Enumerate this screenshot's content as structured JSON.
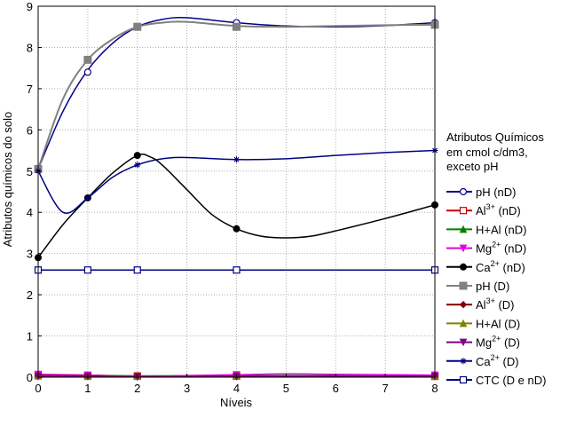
{
  "chart_data": {
    "type": "line",
    "xlabel": "Níveis",
    "ylabel": "Atributos químicos do solo",
    "xlim": [
      0,
      8
    ],
    "ylim": [
      0,
      9
    ],
    "x_ticks": [
      "0",
      "1",
      "2",
      "3",
      "4",
      "5",
      "6",
      "7",
      "8"
    ],
    "y_ticks": [
      "0",
      "1",
      "2",
      "3",
      "4",
      "5",
      "6",
      "7",
      "8",
      "9"
    ],
    "grid": true,
    "legend_position": "right",
    "legend_title": [
      "Atributos Químicos",
      "em cmol c/dm3,",
      "exceto pH"
    ],
    "series": [
      {
        "name": "pH (nD)",
        "legend": [
          "pH (nD)"
        ],
        "color": "#00008b",
        "marker": "circle-open",
        "x": [
          0,
          1,
          2,
          4,
          8
        ],
        "y": [
          5.05,
          7.4,
          8.5,
          8.6,
          8.6
        ],
        "curve": [
          [
            0,
            5.05
          ],
          [
            0.5,
            6.45
          ],
          [
            1,
            7.45
          ],
          [
            1.5,
            8.1
          ],
          [
            2,
            8.5
          ],
          [
            2.5,
            8.68
          ],
          [
            3,
            8.72
          ],
          [
            4,
            8.6
          ],
          [
            5,
            8.52
          ],
          [
            6,
            8.5
          ],
          [
            7,
            8.53
          ],
          [
            8,
            8.6
          ]
        ]
      },
      {
        "name": "Al 3+ (nD)",
        "legend": [
          "Al",
          "3+",
          " (nD)"
        ],
        "color": "#cc0000",
        "marker": "square-open",
        "x": [
          0,
          1,
          2,
          4,
          8
        ],
        "y": [
          0.05,
          0.04,
          0.03,
          0.03,
          0.02
        ],
        "curve": [
          [
            0,
            0.05
          ],
          [
            1,
            0.04
          ],
          [
            2,
            0.03
          ],
          [
            4,
            0.03
          ],
          [
            8,
            0.02
          ]
        ]
      },
      {
        "name": "H+Al (nD)",
        "legend": [
          "H+Al  (nD)"
        ],
        "color": "#008000",
        "marker": "triangle",
        "x": [
          0,
          1,
          2,
          4,
          8
        ],
        "y": [
          0.06,
          0.05,
          0.03,
          0.04,
          0.03
        ],
        "curve": [
          [
            0,
            0.06
          ],
          [
            1,
            0.05
          ],
          [
            2,
            0.03
          ],
          [
            4,
            0.04
          ],
          [
            8,
            0.03
          ]
        ]
      },
      {
        "name": "Mg 2+ (nD)",
        "legend": [
          "Mg",
          "2+",
          " (nD)"
        ],
        "color": "#e000e0",
        "marker": "triangle-down",
        "x": [
          0,
          1,
          2,
          4,
          8
        ],
        "y": [
          0.07,
          0.05,
          0.01,
          0.06,
          0.05
        ],
        "curve": [
          [
            0,
            0.07
          ],
          [
            1,
            0.05
          ],
          [
            2,
            0.01
          ],
          [
            3,
            0.04
          ],
          [
            4,
            0.06
          ],
          [
            5,
            0.08
          ],
          [
            6,
            0.07
          ],
          [
            8,
            0.05
          ]
        ]
      },
      {
        "name": "Ca2+ (nD)",
        "legend": [
          "Ca",
          "2+",
          " (nD)"
        ],
        "color": "#000000",
        "marker": "circle-filled",
        "x": [
          0,
          1,
          2,
          4,
          8
        ],
        "y": [
          2.9,
          4.35,
          5.38,
          3.6,
          4.18
        ],
        "curve": [
          [
            0,
            2.9
          ],
          [
            0.5,
            3.7
          ],
          [
            1,
            4.35
          ],
          [
            1.5,
            4.95
          ],
          [
            2,
            5.38
          ],
          [
            2.25,
            5.35
          ],
          [
            2.5,
            5.15
          ],
          [
            3,
            4.55
          ],
          [
            3.5,
            3.95
          ],
          [
            4,
            3.6
          ],
          [
            4.5,
            3.42
          ],
          [
            5,
            3.38
          ],
          [
            5.5,
            3.42
          ],
          [
            6,
            3.55
          ],
          [
            7,
            3.85
          ],
          [
            8,
            4.18
          ]
        ]
      },
      {
        "name": "pH (D)",
        "legend": [
          "pH (D)"
        ],
        "color": "#808080",
        "marker": "square-filled",
        "x": [
          0,
          1,
          2,
          4,
          8
        ],
        "y": [
          5.05,
          7.7,
          8.5,
          8.5,
          8.55
        ],
        "curve": [
          [
            0,
            5.05
          ],
          [
            0.5,
            6.75
          ],
          [
            1,
            7.7
          ],
          [
            1.5,
            8.2
          ],
          [
            2,
            8.5
          ],
          [
            2.5,
            8.6
          ],
          [
            3,
            8.62
          ],
          [
            4,
            8.52
          ],
          [
            5,
            8.5
          ],
          [
            6,
            8.52
          ],
          [
            7,
            8.54
          ],
          [
            8,
            8.55
          ]
        ]
      },
      {
        "name": "Al 3+ (D)",
        "legend": [
          "Al",
          "3+",
          " (D)"
        ],
        "color": "#800000",
        "marker": "diamond",
        "x": [
          0,
          1,
          2,
          4,
          8
        ],
        "y": [
          0.04,
          0.03,
          0.02,
          0.02,
          0.02
        ],
        "curve": [
          [
            0,
            0.04
          ],
          [
            1,
            0.03
          ],
          [
            2,
            0.02
          ],
          [
            4,
            0.02
          ],
          [
            8,
            0.02
          ]
        ]
      },
      {
        "name": "H+Al (D)",
        "legend": [
          "H+Al   (D)"
        ],
        "color": "#808000",
        "marker": "triangle",
        "x": [
          0,
          1,
          2,
          4,
          8
        ],
        "y": [
          0.03,
          0.02,
          0.02,
          0.02,
          0.02
        ],
        "curve": [
          [
            0,
            0.03
          ],
          [
            1,
            0.02
          ],
          [
            2,
            0.02
          ],
          [
            4,
            0.02
          ],
          [
            8,
            0.02
          ]
        ]
      },
      {
        "name": "Mg 2+ (D)",
        "legend": [
          "Mg",
          "2+",
          " (D)"
        ],
        "color": "#800080",
        "marker": "triangle-down",
        "x": [
          0,
          1,
          2,
          4,
          8
        ],
        "y": [
          0.02,
          0.02,
          0.01,
          0.02,
          0.02
        ],
        "curve": [
          [
            0,
            0.02
          ],
          [
            1,
            0.02
          ],
          [
            2,
            0.01
          ],
          [
            4,
            0.02
          ],
          [
            8,
            0.02
          ]
        ]
      },
      {
        "name": "Ca2+ (D)",
        "legend": [
          "Ca",
          "2+",
          " (D)"
        ],
        "color": "#000080",
        "marker": "star",
        "x": [
          0,
          1,
          2,
          4,
          8
        ],
        "y": [
          5.0,
          4.35,
          5.15,
          5.28,
          5.5
        ],
        "curve": [
          [
            0,
            5.0
          ],
          [
            0.5,
            4.0
          ],
          [
            1,
            4.35
          ],
          [
            1.5,
            4.85
          ],
          [
            2,
            5.15
          ],
          [
            2.5,
            5.3
          ],
          [
            3,
            5.33
          ],
          [
            4,
            5.28
          ],
          [
            5,
            5.3
          ],
          [
            6,
            5.38
          ],
          [
            7,
            5.45
          ],
          [
            8,
            5.5
          ]
        ]
      },
      {
        "name": "CTC (D e nD)",
        "legend": [
          "CTC  (D e nD)"
        ],
        "color": "#000080",
        "marker": "square-open",
        "x": [
          0,
          1,
          2,
          4,
          8
        ],
        "y": [
          2.6,
          2.6,
          2.6,
          2.6,
          2.6
        ],
        "curve": [
          [
            0,
            2.6
          ],
          [
            8,
            2.6
          ]
        ]
      }
    ]
  }
}
